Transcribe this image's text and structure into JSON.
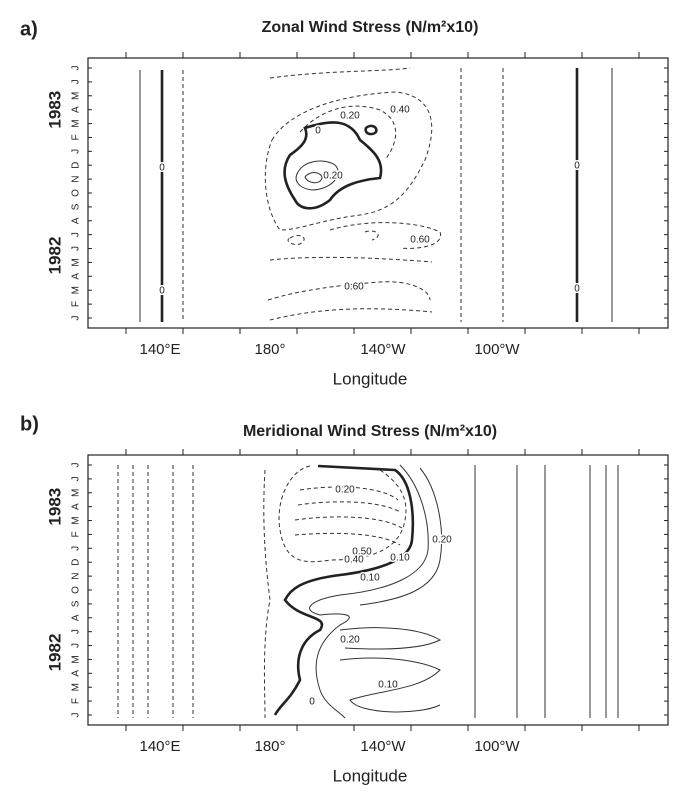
{
  "panels": [
    {
      "label": "a)",
      "title": "Zonal Wind Stress (N/m²x10)",
      "x_tick_labels": [
        "140°E",
        "180°",
        "140°W",
        "100°W"
      ],
      "x_label": "Longitude",
      "months": [
        "J",
        "F",
        "M",
        "A",
        "M",
        "J",
        "J",
        "A",
        "S",
        "O",
        "N",
        "D",
        "J",
        "F",
        "M",
        "A",
        "M",
        "J",
        "J"
      ],
      "years": [
        "1982",
        "1983"
      ],
      "contour_labels": [
        "0.20",
        "0.40",
        "0",
        "0.20",
        "0.60",
        "0.60",
        "0",
        "0",
        "0",
        "0"
      ]
    },
    {
      "label": "b)",
      "title": "Meridional Wind Stress (N/m²x10)",
      "x_tick_labels": [
        "140°E",
        "180°",
        "140°W",
        "100°W"
      ],
      "x_label": "Longitude",
      "months": [
        "J",
        "F",
        "M",
        "A",
        "M",
        "J",
        "J",
        "A",
        "S",
        "O",
        "N",
        "D",
        "J",
        "F",
        "M",
        "A",
        "M",
        "J",
        "J"
      ],
      "years": [
        "1982",
        "1983"
      ],
      "contour_labels": [
        "0.20",
        "0.50",
        "0.40",
        "0.10",
        "0.10",
        "0.20",
        "0.20",
        "0.10",
        "0"
      ]
    }
  ]
}
